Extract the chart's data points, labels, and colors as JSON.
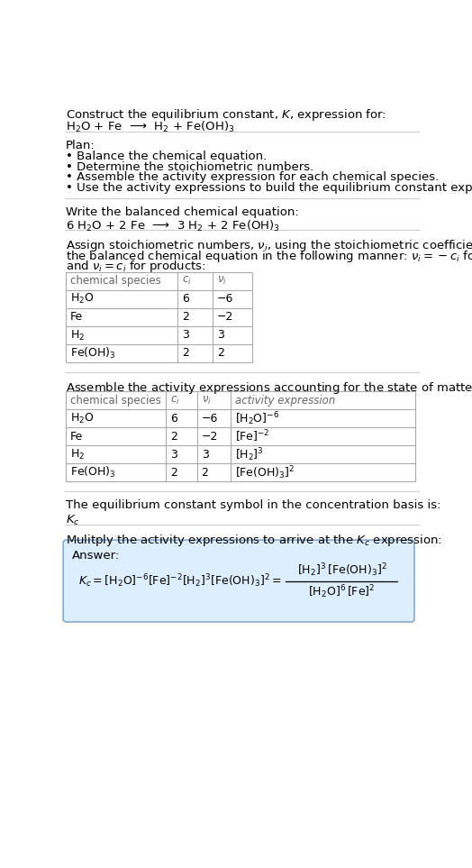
{
  "title_line1": "Construct the equilibrium constant, $K$, expression for:",
  "reaction_unbalanced": "H$_2$O + Fe  ⟶  H$_2$ + Fe(OH)$_3$",
  "plan_header": "Plan:",
  "plan_items": [
    "• Balance the chemical equation.",
    "• Determine the stoichiometric numbers.",
    "• Assemble the activity expression for each chemical species.",
    "• Use the activity expressions to build the equilibrium constant expression."
  ],
  "balanced_header": "Write the balanced chemical equation:",
  "reaction_balanced": "6 H$_2$O + 2 Fe  ⟶  3 H$_2$ + 2 Fe(OH)$_3$",
  "stoich_header_lines": [
    "Assign stoichiometric numbers, $\\nu_i$, using the stoichiometric coefficients, $c_i$, from",
    "the balanced chemical equation in the following manner: $\\nu_i = -c_i$ for reactants",
    "and $\\nu_i = c_i$ for products:"
  ],
  "table1_cols": [
    "chemical species",
    "$c_i$",
    "$\\nu_i$"
  ],
  "table1_data": [
    [
      "H$_2$O",
      "6",
      "−6"
    ],
    [
      "Fe",
      "2",
      "−2"
    ],
    [
      "H$_2$",
      "3",
      "3"
    ],
    [
      "Fe(OH)$_3$",
      "2",
      "2"
    ]
  ],
  "activity_header": "Assemble the activity expressions accounting for the state of matter and $\\nu_i$:",
  "table2_cols": [
    "chemical species",
    "$c_i$",
    "$\\nu_i$",
    "activity expression"
  ],
  "table2_data": [
    [
      "H$_2$O",
      "6",
      "−6",
      "[H$_2$O]$^{-6}$"
    ],
    [
      "Fe",
      "2",
      "−2",
      "[Fe]$^{-2}$"
    ],
    [
      "H$_2$",
      "3",
      "3",
      "[H$_2$]$^3$"
    ],
    [
      "Fe(OH)$_3$",
      "2",
      "2",
      "[Fe(OH)$_3$]$^2$"
    ]
  ],
  "kc_header": "The equilibrium constant symbol in the concentration basis is:",
  "kc_symbol": "$K_c$",
  "multiply_header": "Mulitply the activity expressions to arrive at the $K_c$ expression:",
  "answer_label": "Answer:",
  "bg_color": "#ffffff",
  "table_border_color": "#aaaaaa",
  "answer_box_color": "#ddeeff",
  "answer_box_border": "#88aacc",
  "text_color": "#000000",
  "gray_color": "#666666"
}
